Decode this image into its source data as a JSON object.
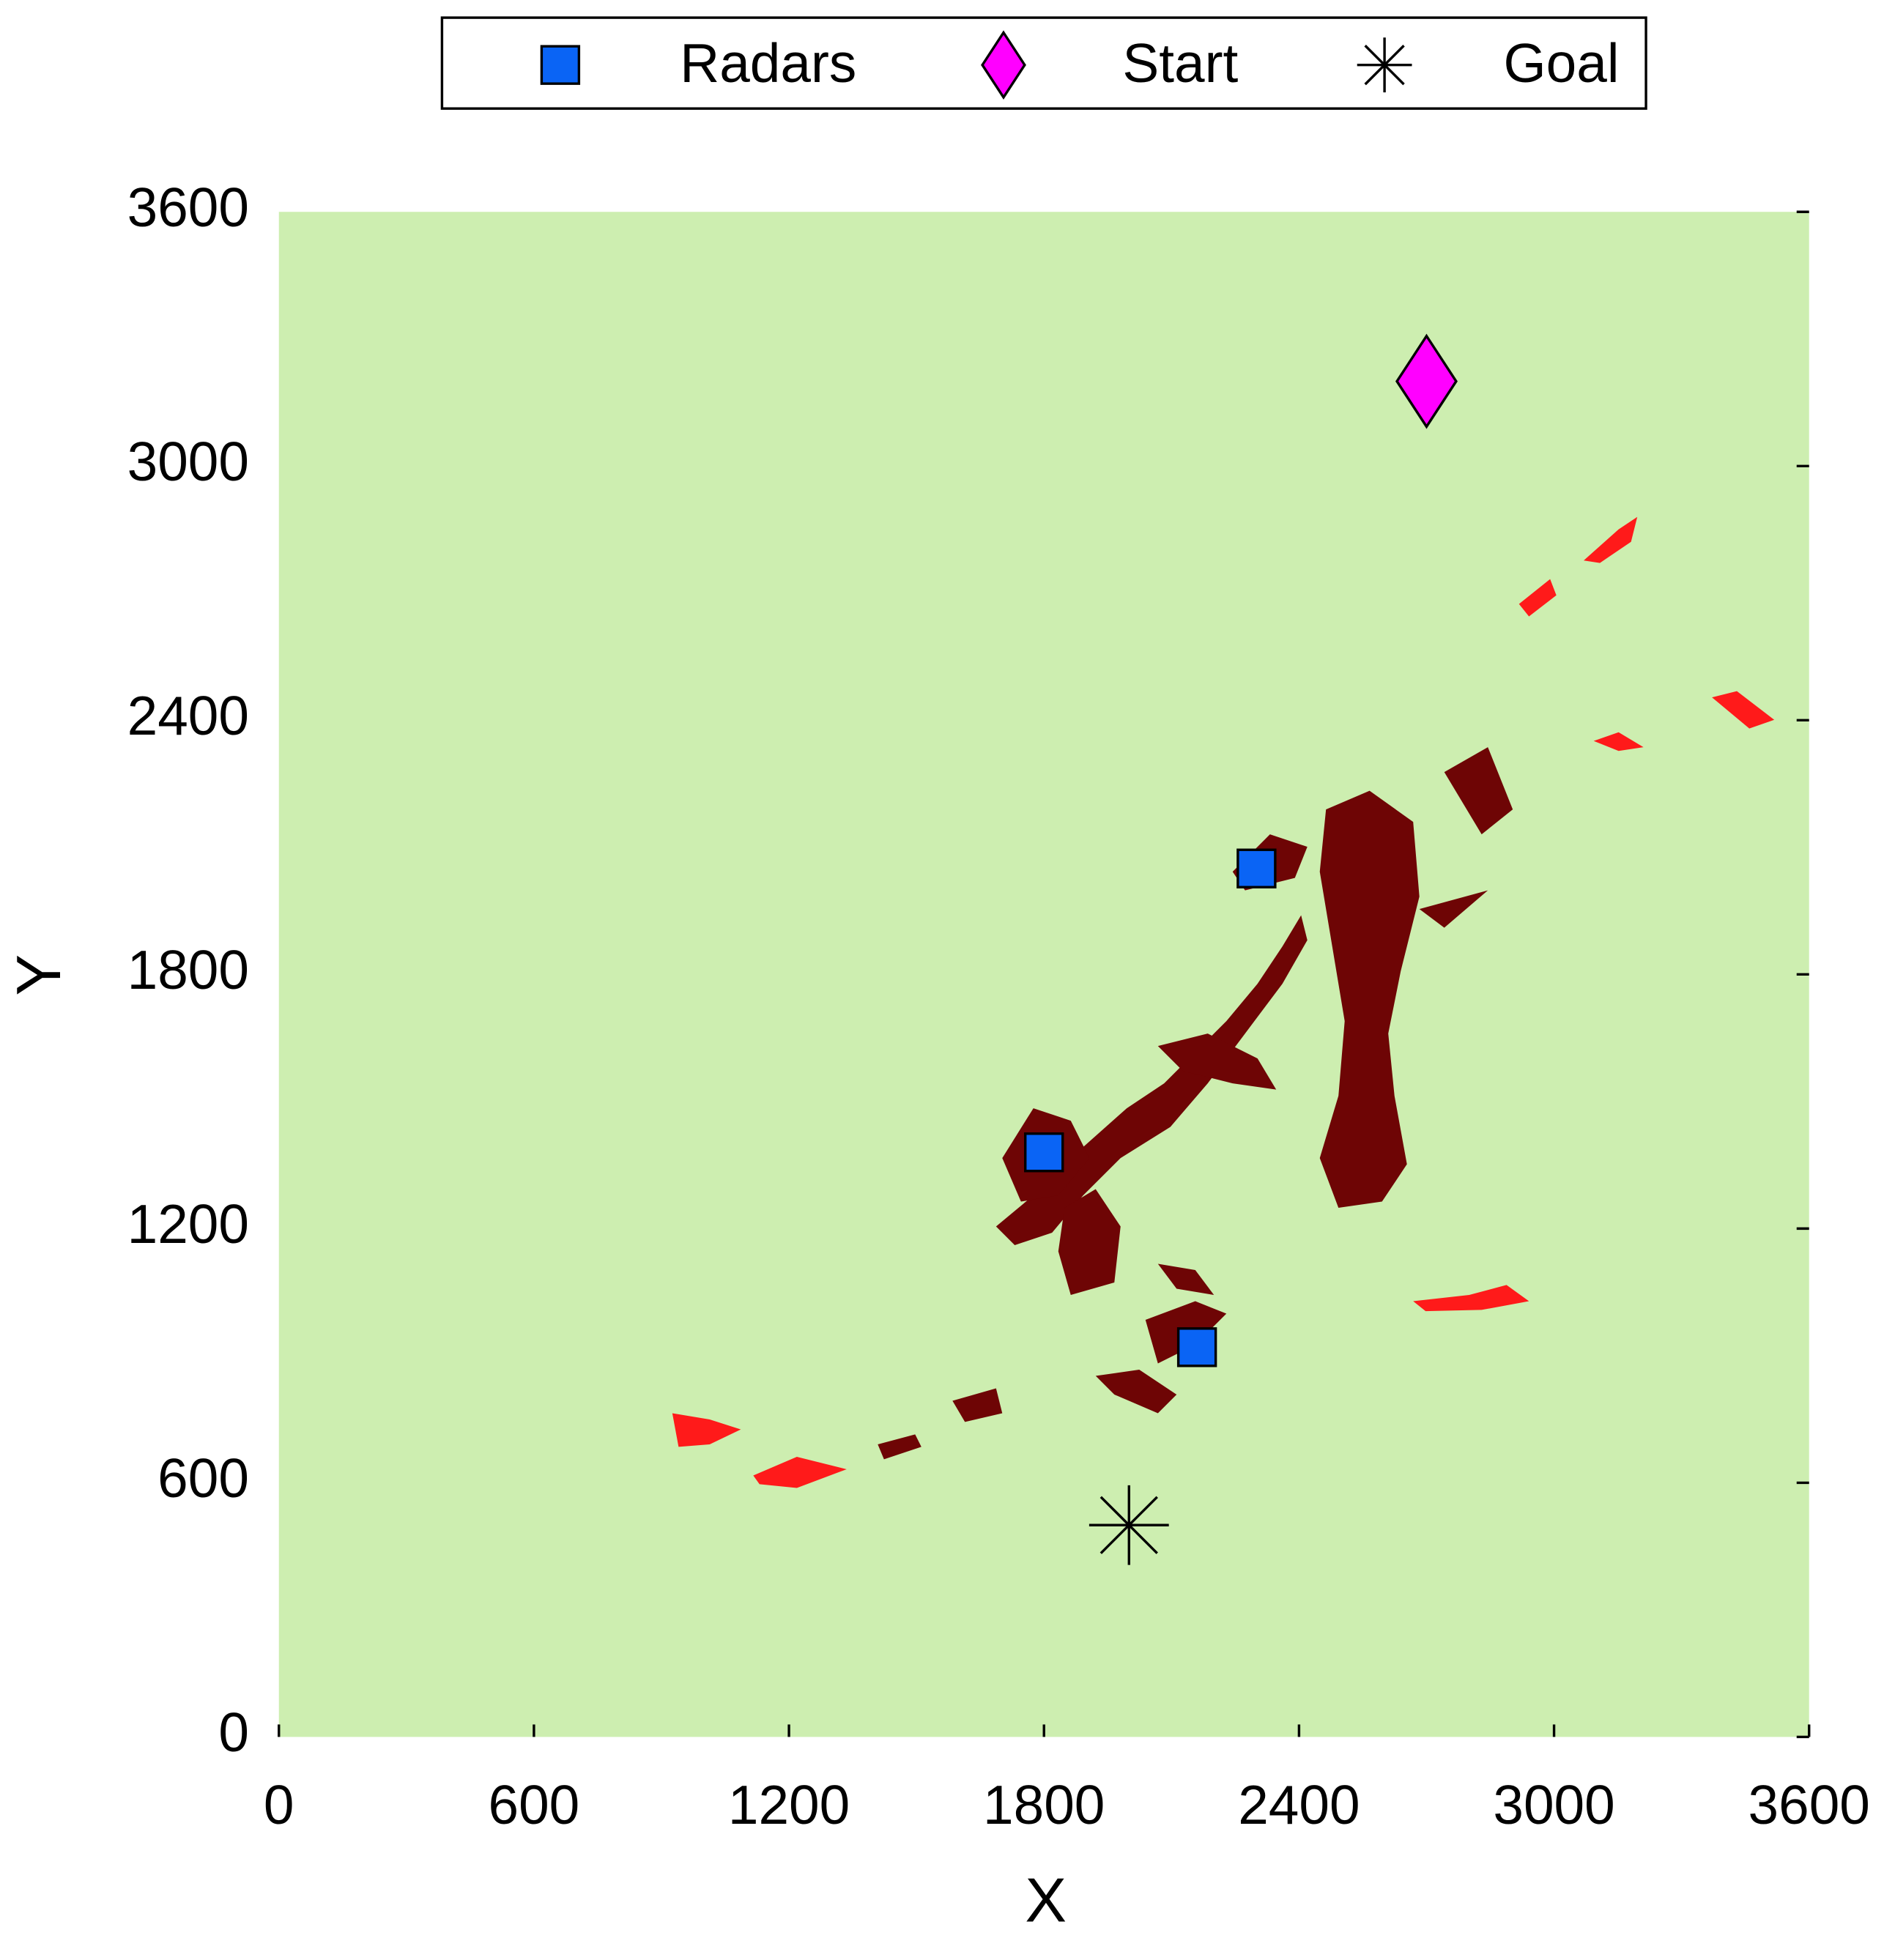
{
  "chart_data": {
    "type": "scatter",
    "xlabel": "X",
    "ylabel": "Y",
    "xlim": [
      0,
      3600
    ],
    "ylim": [
      0,
      3600
    ],
    "xticks": [
      0,
      600,
      1200,
      1800,
      2400,
      3000,
      3600
    ],
    "yticks": [
      0,
      600,
      1200,
      1800,
      2400,
      3000,
      3600
    ],
    "grid": false,
    "legend": "top",
    "background": "#cdeeb0",
    "series": [
      {
        "name": "Radars",
        "marker": "square",
        "color": "#0a64f5",
        "x": [
          1800,
          2300,
          2160
        ],
        "values": [
          1380,
          2050,
          920
        ]
      },
      {
        "name": "Start",
        "marker": "diamond",
        "color": "#ff00ff",
        "x": [
          2700
        ],
        "values": [
          3200
        ]
      },
      {
        "name": "Goal",
        "marker": "star",
        "color": "#000000",
        "x": [
          2000
        ],
        "values": [
          500
        ]
      }
    ]
  }
}
